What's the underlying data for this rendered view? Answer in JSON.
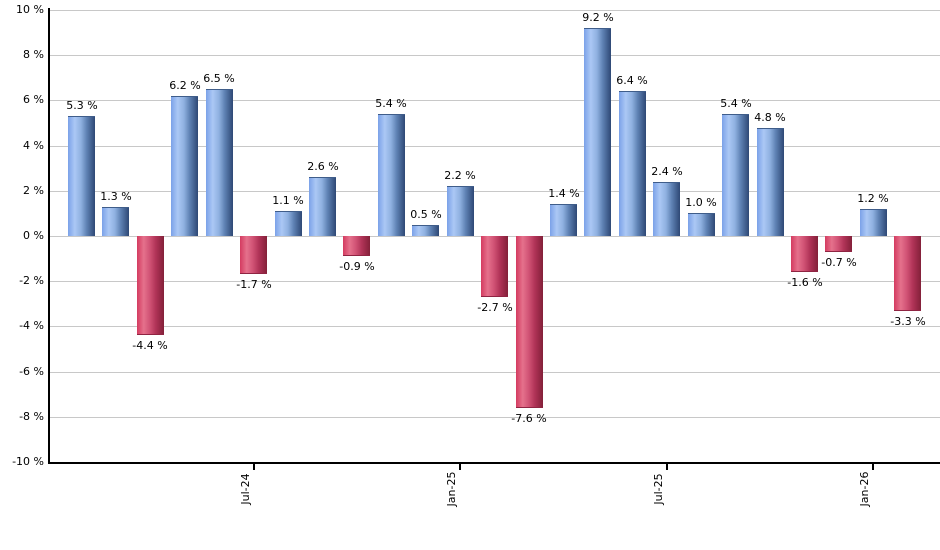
{
  "chart_data": {
    "type": "bar",
    "title": "",
    "xlabel": "",
    "ylabel": "",
    "ylim": [
      -10,
      10
    ],
    "grid": true,
    "background": "#ffffff",
    "values": [
      5.3,
      1.3,
      -4.4,
      6.2,
      6.5,
      -1.7,
      1.1,
      2.6,
      -0.9,
      5.4,
      0.5,
      2.2,
      -2.7,
      -7.6,
      1.4,
      9.2,
      6.4,
      2.4,
      1.0,
      5.4,
      4.8,
      -1.6,
      -0.7,
      1.2,
      -3.3
    ],
    "bar_labels": [
      "5.3 %",
      "1.3 %",
      "-4.4 %",
      "6.2 %",
      "6.5 %",
      "-1.7 %",
      "1.1 %",
      "2.6 %",
      "-0.9 %",
      "5.4 %",
      "0.5 %",
      "2.2 %",
      "-2.7 %",
      "-7.6 %",
      "1.4 %",
      "9.2 %",
      "6.4 %",
      "2.4 %",
      "1.0 %",
      "5.4 %",
      "4.8 %",
      "-1.6 %",
      "-0.7 %",
      "1.2 %",
      "-3.3 %"
    ],
    "y_ticks": [
      10,
      8,
      6,
      4,
      2,
      0,
      -2,
      -4,
      -6,
      -8,
      -10
    ],
    "y_tick_labels": [
      "10 %",
      "8 %",
      "6 %",
      "4 %",
      "2 %",
      "0 %",
      "-2 %",
      "-4 %",
      "-6 %",
      "-8 %",
      "-10 %"
    ],
    "x_ticks": [
      {
        "label": "Jul-24",
        "bar_index": 5
      },
      {
        "label": "Jan-25",
        "bar_index": 11
      },
      {
        "label": "Jul-25",
        "bar_index": 17
      },
      {
        "label": "Jan-26",
        "bar_index": 23
      }
    ],
    "colors": {
      "positive_light": "#abc8f5",
      "positive_base": "#7ba1e8",
      "positive_dark": "#2e4875",
      "negative_light": "#e5718c",
      "negative_base": "#d43b60",
      "negative_dark": "#832039",
      "gridline": "#c8c8c8",
      "axis": "#000000",
      "label": "#000000"
    }
  }
}
